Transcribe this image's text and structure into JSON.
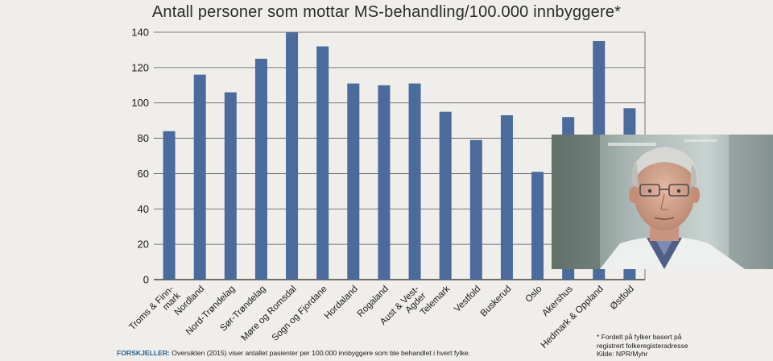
{
  "chart_data": {
    "type": "bar",
    "title": "Antall personer som mottar MS-behandling/100.000 innbyggere*",
    "categories": [
      "Troms & Finn-mark",
      "Nordland",
      "Nord-Trøndelag",
      "Sør-Trøndelag",
      "Møre og Romsdal",
      "Sogn og Fjordane",
      "Hordaland",
      "Rogaland",
      "Aust & Vest-Agder",
      "Telemark",
      "Vestfold",
      "Buskerud",
      "Oslo",
      "Akershus",
      "Hedmark & Oppland",
      "Østfold"
    ],
    "category_lines": [
      [
        "Troms & Finn-",
        "mark"
      ],
      [
        "Nordland"
      ],
      [
        "Nord-Trøndelag"
      ],
      [
        "Sør-Trøndelag"
      ],
      [
        "Møre og Romsdal"
      ],
      [
        "Sogn og Fjordane"
      ],
      [
        "Hordaland"
      ],
      [
        "Rogaland"
      ],
      [
        "Aust & Vest-",
        "Agder"
      ],
      [
        "Telemark"
      ],
      [
        "Vestfold"
      ],
      [
        "Buskerud"
      ],
      [
        "Oslo"
      ],
      [
        "Akershus"
      ],
      [
        "Hedmark & Oppland"
      ],
      [
        "Østfold"
      ]
    ],
    "values": [
      84,
      116,
      106,
      125,
      140,
      132,
      111,
      110,
      111,
      95,
      79,
      93,
      61,
      92,
      135,
      97
    ],
    "ylim": [
      0,
      140
    ],
    "yticks": [
      0,
      20,
      40,
      60,
      80,
      100,
      120,
      140
    ],
    "grid": true,
    "bar_color": "#4a6b9c"
  },
  "footnote": {
    "line1": "* Fordelt på fylker basert på",
    "line2": "registrert folkeregisteradresse",
    "line3": "Kilde: NPR/Myhr"
  },
  "caption": {
    "label": "FORSKJELLER:",
    "text": " Oversikten (2015) viser antallet pasienter per 100.000 innbyggere som ble behandlet i hvert fylke."
  },
  "photo": {
    "icon": "portrait-photo"
  }
}
